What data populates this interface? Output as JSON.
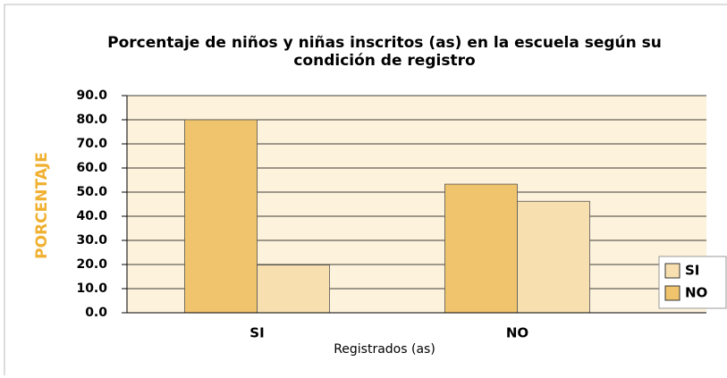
{
  "chart_data": {
    "type": "bar",
    "title": "Porcentaje de niños y niñas inscritos (as) en la escuela según su condición de registro",
    "x_label": "Registrados (as)",
    "y_label": "PORCENTAJE",
    "categories": [
      "SI",
      "NO"
    ],
    "series": [
      {
        "name": "NO",
        "color": "#f0c46c",
        "values": [
          80,
          53.3
        ]
      },
      {
        "name": "SI",
        "color": "#f8dfb0",
        "values": [
          19.8,
          46.2
        ]
      }
    ],
    "ylim": [
      0,
      90
    ],
    "yticks": [
      {
        "value": 0,
        "label": "0.0"
      },
      {
        "value": 10,
        "label": "10.0"
      },
      {
        "value": 20,
        "label": "20.0"
      },
      {
        "value": 30,
        "label": "30.0"
      },
      {
        "value": 40,
        "label": "40.0"
      },
      {
        "value": 50,
        "label": "50.0"
      },
      {
        "value": 60,
        "label": "60.0"
      },
      {
        "value": 70,
        "label": "70.0"
      },
      {
        "value": 80,
        "label": "80.0"
      },
      {
        "value": 90,
        "label": "90.0"
      }
    ],
    "grid": true,
    "legend": "right",
    "plot_background": "#fdf2dc"
  }
}
